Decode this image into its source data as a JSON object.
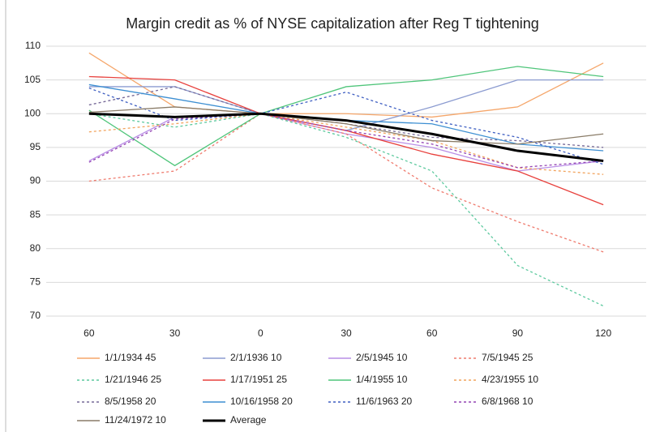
{
  "chart_data": {
    "type": "line",
    "title": "Margin credit as % of NYSE capitalization after Reg T tightening",
    "categories": [
      "60",
      "30",
      "0",
      "30",
      "60",
      "90",
      "120"
    ],
    "ylim": [
      70,
      110
    ],
    "yticks": [
      70,
      75,
      80,
      85,
      90,
      95,
      100,
      105,
      110
    ],
    "grid": true,
    "legend": "bottom",
    "series": [
      {
        "name": "1/1/1934 45",
        "color": "#f5a66a",
        "dashed": false,
        "values": [
          109,
          101,
          100,
          100,
          99.5,
          101,
          107.5
        ]
      },
      {
        "name": "2/1/1936 10",
        "color": "#8b9bd0",
        "dashed": false,
        "values": [
          104,
          104,
          100,
          97.5,
          101,
          105,
          105
        ]
      },
      {
        "name": "2/5/1945 10",
        "color": "#b98ee6",
        "dashed": false,
        "values": [
          93,
          99.5,
          100,
          97,
          95,
          91.5,
          93
        ]
      },
      {
        "name": "7/5/1945 25",
        "color": "#ef7b6e",
        "dashed": true,
        "values": [
          90,
          91.5,
          100,
          97,
          89,
          84,
          79.5
        ]
      },
      {
        "name": "1/21/1946 25",
        "color": "#5cc99e",
        "dashed": true,
        "values": [
          100,
          98,
          100,
          96.5,
          91.5,
          77.5,
          71.5
        ]
      },
      {
        "name": "1/17/1951 25",
        "color": "#e8413d",
        "dashed": false,
        "values": [
          105.5,
          105,
          100,
          97.5,
          94,
          91.5,
          86.5
        ]
      },
      {
        "name": "1/4/1955 10",
        "color": "#4fc57a",
        "dashed": false,
        "values": [
          100.5,
          92.3,
          100,
          104,
          105,
          107,
          105.5
        ]
      },
      {
        "name": "4/23/1955 10",
        "color": "#f2a35c",
        "dashed": true,
        "values": [
          97.3,
          98.5,
          100,
          98,
          96,
          92,
          91
        ]
      },
      {
        "name": "8/5/1958 20",
        "color": "#776a98",
        "dashed": true,
        "values": [
          101.3,
          104,
          100,
          98.5,
          96.5,
          96,
          95
        ]
      },
      {
        "name": "10/16/1958 20",
        "color": "#3d8fd2",
        "dashed": false,
        "values": [
          104.3,
          102.2,
          100,
          99,
          98.5,
          95.5,
          94.5
        ]
      },
      {
        "name": "11/6/1963 20",
        "color": "#3f5fc2",
        "dashed": true,
        "values": [
          103.8,
          99,
          100,
          103.2,
          99,
          96.5,
          92.5
        ]
      },
      {
        "name": "6/8/1968 10",
        "color": "#9444b4",
        "dashed": true,
        "values": [
          92.8,
          99.2,
          100,
          97.5,
          95.5,
          92,
          93
        ]
      },
      {
        "name": "11/24/1972 10",
        "color": "#8a7c68",
        "dashed": false,
        "values": [
          100.2,
          101,
          100,
          98.5,
          96,
          95.5,
          97
        ]
      },
      {
        "name": "Average",
        "color": "#000000",
        "dashed": false,
        "width": 3,
        "values": [
          100,
          99.5,
          100,
          99,
          97,
          94.5,
          93
        ]
      }
    ]
  }
}
